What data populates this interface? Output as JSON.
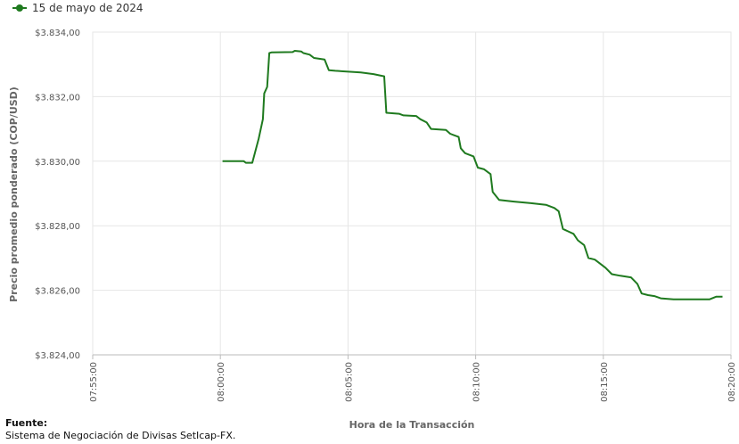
{
  "chart_data": {
    "type": "line",
    "xlabel": "Hora de la Transacción",
    "ylabel": "Precio promedio ponderado (COP/USD)",
    "x_ticks": [
      "07:55:00",
      "08:00:00",
      "08:05:00",
      "08:10:00",
      "08:15:00",
      "08:20:00"
    ],
    "y_ticks": [
      "$3.824,00",
      "$3.826,00",
      "$3.828,00",
      "$3.830,00",
      "$3.832,00",
      "$3.834,00"
    ],
    "xlim": [
      "07:55:00",
      "08:20:00"
    ],
    "ylim": [
      3824,
      3834
    ],
    "grid": true,
    "legend_position": "top-left",
    "series": [
      {
        "name": "15 de mayo de 2024",
        "color": "#1f7a1f",
        "points": [
          [
            "08:00:05",
            3830.0
          ],
          [
            "08:00:55",
            3830.0
          ],
          [
            "08:01:00",
            3829.95
          ],
          [
            "08:01:15",
            3829.95
          ],
          [
            "08:01:30",
            3830.7
          ],
          [
            "08:01:40",
            3831.3
          ],
          [
            "08:01:43",
            3832.1
          ],
          [
            "08:01:50",
            3832.3
          ],
          [
            "08:01:55",
            3833.35
          ],
          [
            "08:02:00",
            3833.37
          ],
          [
            "08:02:50",
            3833.38
          ],
          [
            "08:02:55",
            3833.42
          ],
          [
            "08:03:10",
            3833.4
          ],
          [
            "08:03:15",
            3833.35
          ],
          [
            "08:03:30",
            3833.3
          ],
          [
            "08:03:40",
            3833.2
          ],
          [
            "08:04:05",
            3833.15
          ],
          [
            "08:04:15",
            3832.82
          ],
          [
            "08:04:30",
            3832.8
          ],
          [
            "08:05:30",
            3832.75
          ],
          [
            "08:06:00",
            3832.7
          ],
          [
            "08:06:25",
            3832.63
          ],
          [
            "08:06:30",
            3831.5
          ],
          [
            "08:07:00",
            3831.47
          ],
          [
            "08:07:10",
            3831.42
          ],
          [
            "08:07:40",
            3831.4
          ],
          [
            "08:07:50",
            3831.3
          ],
          [
            "08:08:05",
            3831.2
          ],
          [
            "08:08:15",
            3831.0
          ],
          [
            "08:08:50",
            3830.97
          ],
          [
            "08:09:00",
            3830.85
          ],
          [
            "08:09:20",
            3830.75
          ],
          [
            "08:09:25",
            3830.4
          ],
          [
            "08:09:35",
            3830.25
          ],
          [
            "08:09:55",
            3830.15
          ],
          [
            "08:10:05",
            3829.8
          ],
          [
            "08:10:20",
            3829.75
          ],
          [
            "08:10:35",
            3829.6
          ],
          [
            "08:10:40",
            3829.05
          ],
          [
            "08:10:55",
            3828.8
          ],
          [
            "08:11:30",
            3828.75
          ],
          [
            "08:12:10",
            3828.7
          ],
          [
            "08:12:45",
            3828.65
          ],
          [
            "08:13:05",
            3828.55
          ],
          [
            "08:13:15",
            3828.45
          ],
          [
            "08:13:25",
            3827.9
          ],
          [
            "08:13:50",
            3827.75
          ],
          [
            "08:14:00",
            3827.55
          ],
          [
            "08:14:15",
            3827.4
          ],
          [
            "08:14:25",
            3827.0
          ],
          [
            "08:14:40",
            3826.95
          ],
          [
            "08:15:05",
            3826.7
          ],
          [
            "08:15:20",
            3826.5
          ],
          [
            "08:15:40",
            3826.45
          ],
          [
            "08:16:05",
            3826.4
          ],
          [
            "08:16:20",
            3826.2
          ],
          [
            "08:16:30",
            3825.9
          ],
          [
            "08:16:45",
            3825.85
          ],
          [
            "08:17:00",
            3825.82
          ],
          [
            "08:17:15",
            3825.75
          ],
          [
            "08:17:45",
            3825.72
          ],
          [
            "08:18:30",
            3825.72
          ],
          [
            "08:19:10",
            3825.72
          ],
          [
            "08:19:25",
            3825.8
          ],
          [
            "08:19:40",
            3825.8
          ]
        ]
      }
    ]
  },
  "footer": {
    "source_label": "Fuente:",
    "source_text": "Sistema de Negociación de Divisas SetIcap-FX."
  }
}
